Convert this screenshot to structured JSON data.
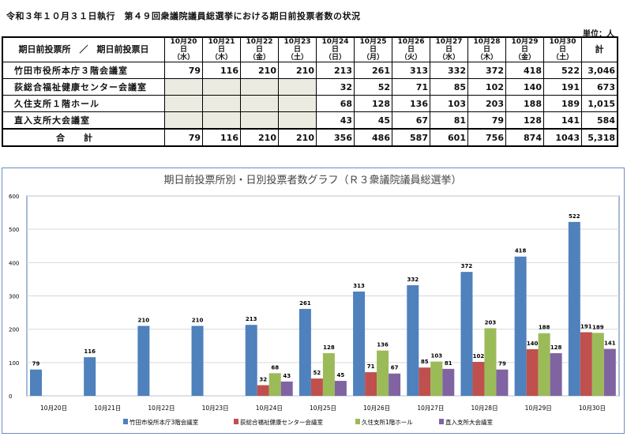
{
  "document": {
    "title": "令和３年１０月３１日執行　第４９回衆議院議員総選挙における期日前投票者数の状況",
    "unit": "単位：人"
  },
  "table": {
    "corner": "期日前投票所　／　期日前投票日",
    "dates": [
      {
        "d": "10月20日",
        "w": "（水）"
      },
      {
        "d": "10月21日",
        "w": "（木）"
      },
      {
        "d": "10月22日",
        "w": "（金）"
      },
      {
        "d": "10月23日",
        "w": "（土）"
      },
      {
        "d": "10月24日",
        "w": "（日）"
      },
      {
        "d": "10月25日",
        "w": "（月）"
      },
      {
        "d": "10月26日",
        "w": "（火）"
      },
      {
        "d": "10月27日",
        "w": "（水）"
      },
      {
        "d": "10月28日",
        "w": "（木）"
      },
      {
        "d": "10月29日",
        "w": "（金）"
      },
      {
        "d": "10月30日",
        "w": "（土）"
      }
    ],
    "sum_header": "計",
    "rows": [
      {
        "name": "竹田市役所本庁３階会議室",
        "values": [
          "79",
          "116",
          "210",
          "210",
          "213",
          "261",
          "313",
          "332",
          "372",
          "418",
          "522"
        ],
        "total": "3,046"
      },
      {
        "name": "荻総合福祉健康センター会議室",
        "values": [
          "",
          "",
          "",
          "",
          "32",
          "52",
          "71",
          "85",
          "102",
          "140",
          "191"
        ],
        "total": "673"
      },
      {
        "name": "久住支所１階ホール",
        "values": [
          "",
          "",
          "",
          "",
          "68",
          "128",
          "136",
          "103",
          "203",
          "188",
          "189"
        ],
        "total": "1,015"
      },
      {
        "name": "直入支所大会議室",
        "values": [
          "",
          "",
          "",
          "",
          "43",
          "45",
          "67",
          "81",
          "79",
          "128",
          "141"
        ],
        "total": "584"
      }
    ],
    "total_row": {
      "name": "合計",
      "values": [
        "79",
        "116",
        "210",
        "210",
        "356",
        "486",
        "587",
        "601",
        "756",
        "874",
        "1043"
      ],
      "total": "5,318"
    }
  },
  "chart_data": {
    "type": "bar",
    "title": "期日前投票所別・日別投票者数グラフ（Ｒ３衆議院議員総選挙）",
    "categories": [
      "10月20日",
      "10月21日",
      "10月22日",
      "10月23日",
      "10月24日",
      "10月25日",
      "10月26日",
      "10月27日",
      "10月28日",
      "10月29日",
      "10月30日"
    ],
    "ylim": [
      0,
      600
    ],
    "yticks": [
      0,
      100,
      200,
      300,
      400,
      500,
      600
    ],
    "grid": true,
    "legend": "bottom",
    "series": [
      {
        "name": "竹田市役所本庁3階会議室",
        "color": "#4f81bd",
        "values": [
          79,
          116,
          210,
          210,
          213,
          261,
          313,
          332,
          372,
          418,
          522
        ]
      },
      {
        "name": "荻総合福祉健康センター会議室",
        "color": "#c0504d",
        "values": [
          null,
          null,
          null,
          null,
          32,
          52,
          71,
          85,
          102,
          140,
          191
        ]
      },
      {
        "name": "久住支所1階ホール",
        "color": "#9bbb59",
        "values": [
          null,
          null,
          null,
          null,
          68,
          128,
          136,
          103,
          203,
          188,
          189
        ]
      },
      {
        "name": "直入支所大会議室",
        "color": "#8064a2",
        "values": [
          null,
          null,
          null,
          null,
          43,
          45,
          67,
          81,
          79,
          128,
          141
        ]
      }
    ]
  }
}
